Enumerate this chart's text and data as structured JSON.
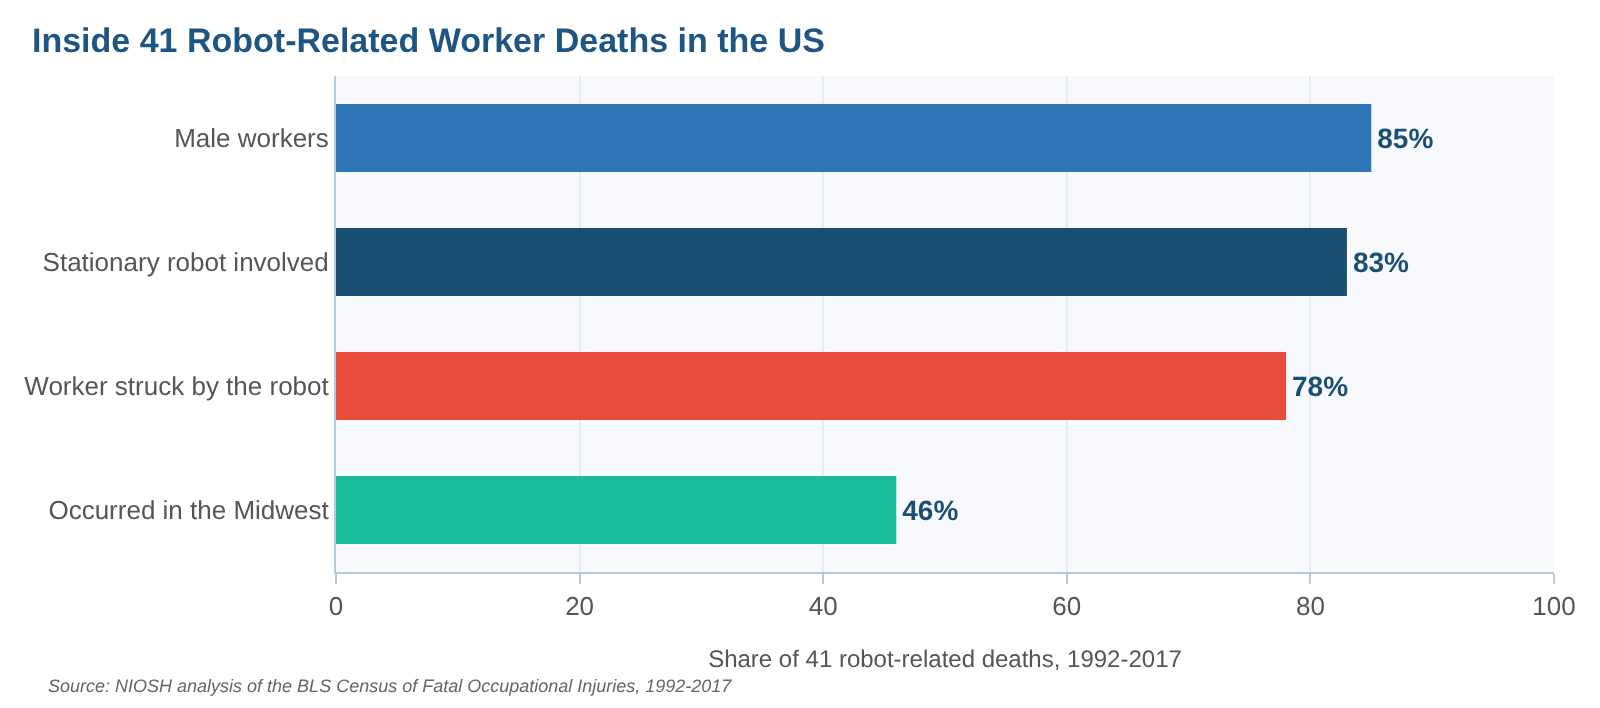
{
  "chart_data": {
    "type": "bar",
    "orientation": "horizontal",
    "title": "Inside 41 Robot-Related Worker Deaths in the US",
    "categories": [
      "Male workers",
      "Stationary robot involved",
      "Worker struck by the robot",
      "Occurred in the Midwest"
    ],
    "values": [
      85,
      83,
      78,
      46
    ],
    "colors": [
      "#2e75b6",
      "#1b4f72",
      "#e74c3c",
      "#1abc9c"
    ],
    "value_labels": [
      "85%",
      "83%",
      "78%",
      "46%"
    ],
    "xlabel": "Share of 41 robot-related deaths, 1992-2017",
    "xlim": [
      0,
      100
    ],
    "xticks": [
      0,
      20,
      40,
      60,
      80,
      100
    ],
    "grid": "x",
    "legend": false,
    "annotations": [
      "Source: NIOSH analysis of the BLS Census of Fatal Occupational Injuries, 1992-2017"
    ]
  }
}
